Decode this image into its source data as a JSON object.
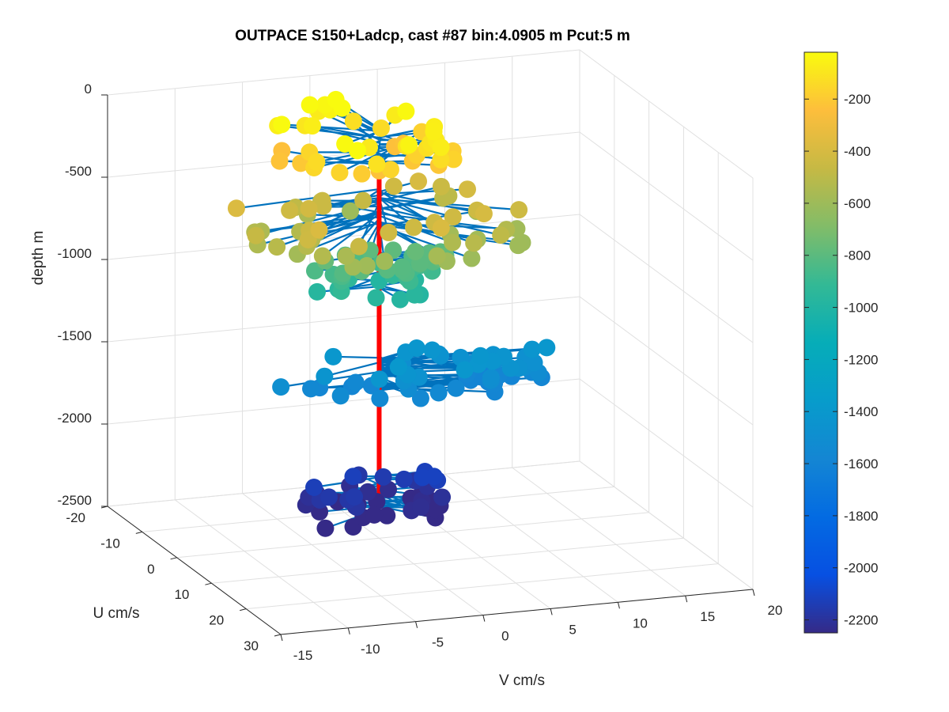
{
  "chart_data": {
    "type": "scatter",
    "title": "OUTPACE S150+Ladcp, cast #87 bin:4.0905 m  Pcut:5 m",
    "xlabel": "V cm/s",
    "ylabel": "U cm/s",
    "zlabel": "depth m",
    "xlim": [
      -15,
      20
    ],
    "ylim": [
      -20,
      30
    ],
    "zlim": [
      -2500,
      0
    ],
    "x_ticks": [
      "-15",
      "-10",
      "-5",
      "0",
      "5",
      "10",
      "15",
      "20"
    ],
    "y_ticks": [
      "-20",
      "-10",
      "0",
      "10",
      "20",
      "30"
    ],
    "z_ticks": [
      "0",
      "-500",
      "-1000",
      "-1500",
      "-2000",
      "-2500"
    ],
    "grid": true,
    "colorbar": {
      "ticks": [
        "-200",
        "-400",
        "-600",
        "-800",
        "-1000",
        "-1200",
        "-1400",
        "-1600",
        "-1800",
        "-2000",
        "-2200"
      ],
      "range": [
        -2250,
        -20
      ],
      "colormap": "parula"
    },
    "profile_line_color": "#ff0000",
    "stem_color": "#0072bd",
    "layers": [
      {
        "depth": -120,
        "count": 46,
        "spread_v": 6.5,
        "spread_u": 10,
        "center_v": -0.5,
        "center_u": -2
      },
      {
        "depth": -490,
        "count": 56,
        "spread_v": 11,
        "spread_u": 11,
        "center_v": -1,
        "center_u": 5
      },
      {
        "depth": -880,
        "count": 42,
        "spread_v": 5,
        "spread_u": 4,
        "center_v": 0,
        "center_u": 1
      },
      {
        "depth": -1510,
        "count": 56,
        "spread_v": 10,
        "spread_u": 5,
        "center_v": 2,
        "center_u": 2
      },
      {
        "depth": -2220,
        "count": 48,
        "spread_v": 5,
        "spread_u": 6,
        "center_v": -1,
        "center_u": 2
      }
    ]
  }
}
